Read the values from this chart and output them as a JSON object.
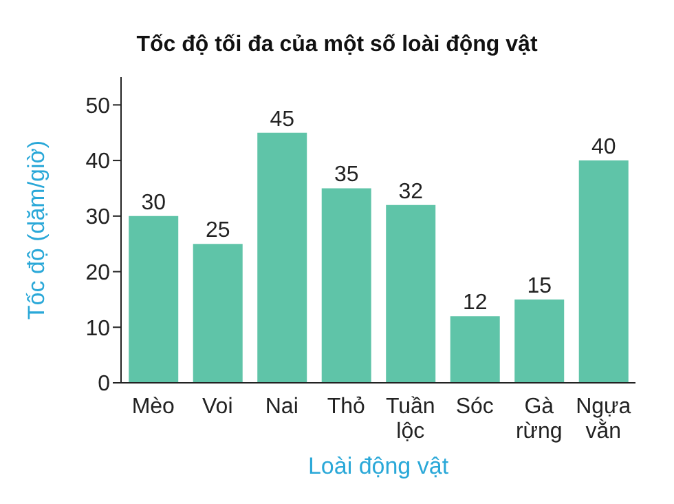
{
  "chart_data": {
    "type": "bar",
    "title": "Tốc độ tối đa của một số loài động vật",
    "xlabel": "Loài động vật",
    "ylabel": "Tốc độ (dặm/giờ)",
    "categories": [
      "Mèo",
      "Voi",
      "Nai",
      "Thỏ",
      "Tuần lộc",
      "Sóc",
      "Gà rừng",
      "Ngựa vằn"
    ],
    "values": [
      30,
      25,
      45,
      35,
      32,
      12,
      15,
      40
    ],
    "color": "#5fc4a8",
    "ylim": [
      0,
      55
    ],
    "yticks": [
      0,
      10,
      20,
      30,
      40,
      50
    ],
    "grid": false,
    "legend": false,
    "data_labels": true
  }
}
